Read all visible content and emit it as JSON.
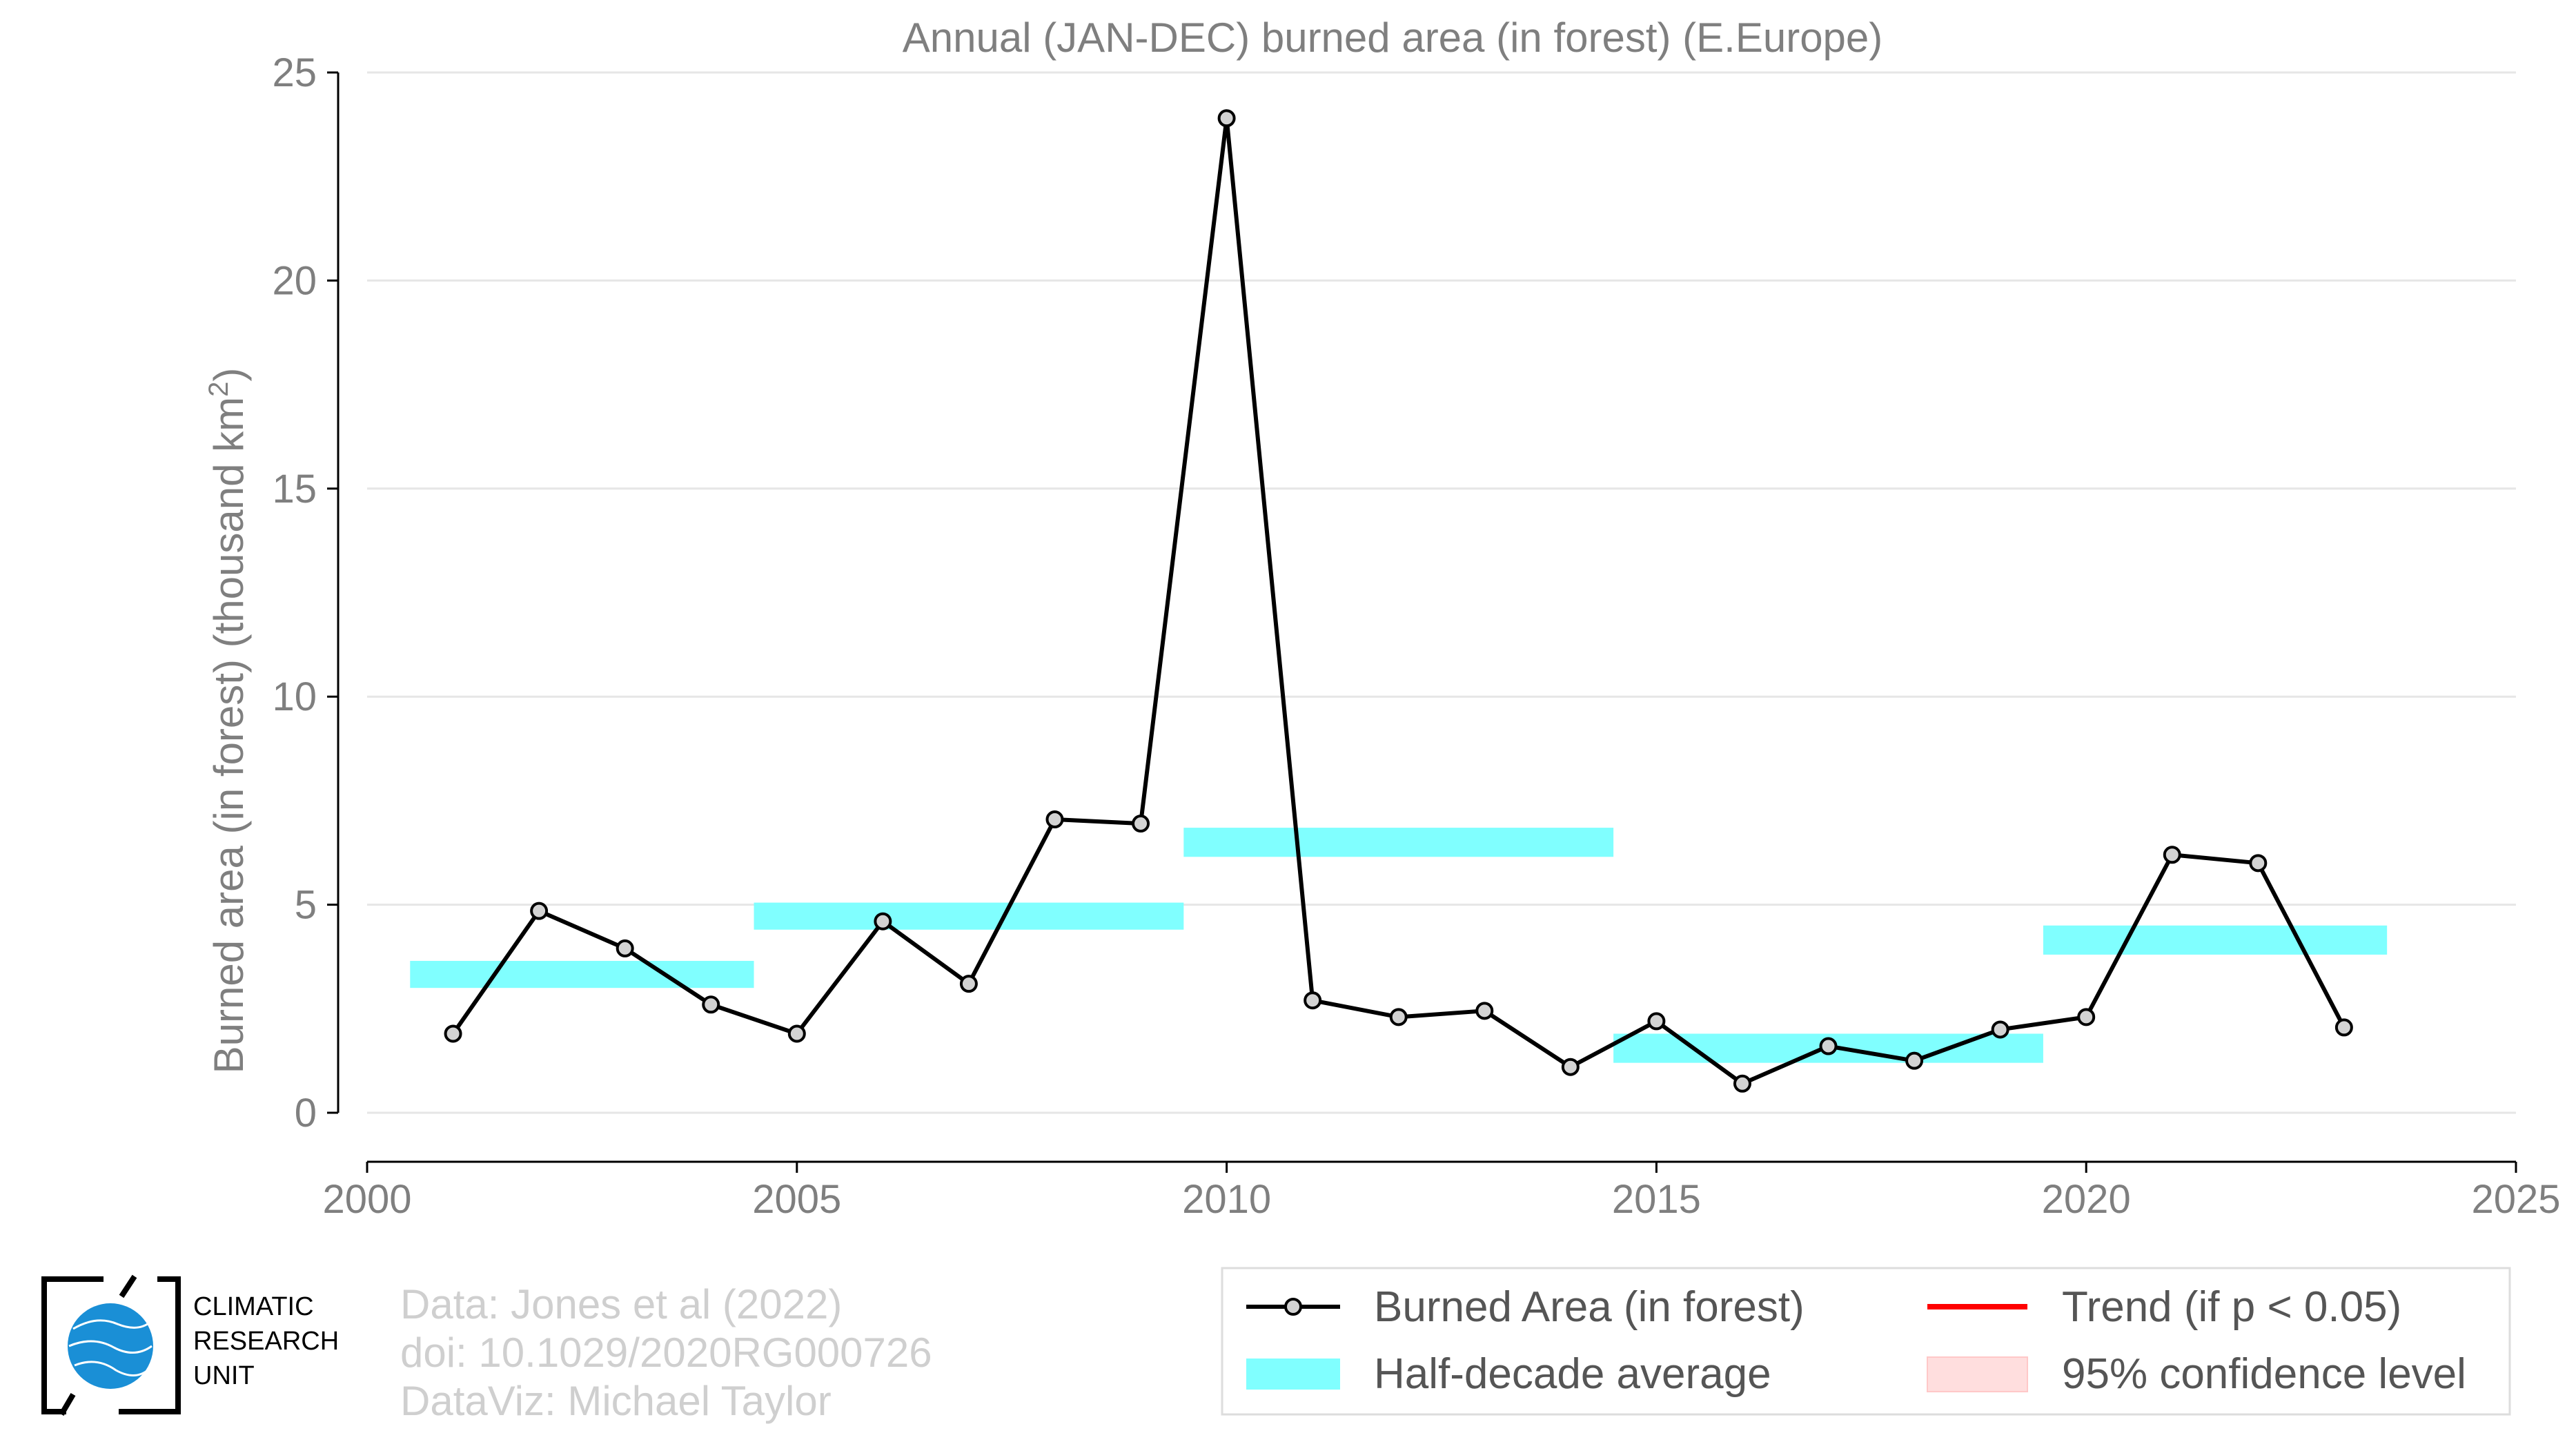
{
  "chart_data": {
    "type": "line",
    "title": "Annual (JAN-DEC) burned area (in forest) (E.Europe)",
    "ylabel": "Burned area (in forest) (thousand km",
    "ylabel_sup": "2",
    "ylabel_close": ")",
    "xlim": [
      2000,
      2025
    ],
    "ylim": [
      0,
      25
    ],
    "x_ticks": [
      2000,
      2005,
      2010,
      2015,
      2020,
      2025
    ],
    "y_ticks": [
      0,
      5,
      10,
      15,
      20,
      25
    ],
    "grid": "horizontal",
    "legend_position": "bottom-right",
    "series": [
      {
        "name": "Burned Area (in forest)",
        "color": "#000000",
        "marker_fill": "#d3d3d3",
        "x": [
          2001,
          2002,
          2003,
          2004,
          2005,
          2006,
          2007,
          2008,
          2009,
          2010,
          2011,
          2012,
          2013,
          2014,
          2015,
          2016,
          2017,
          2018,
          2019,
          2020,
          2021,
          2022,
          2023
        ],
        "y": [
          1.9,
          4.85,
          3.95,
          2.6,
          1.9,
          4.6,
          3.1,
          7.05,
          6.95,
          23.9,
          2.7,
          2.3,
          2.45,
          1.1,
          2.2,
          0.7,
          1.6,
          1.25,
          2.0,
          2.3,
          6.2,
          6.0,
          2.05
        ]
      }
    ],
    "half_decade_average": {
      "name": "Half-decade average",
      "color": "#80ffff",
      "segments": [
        {
          "x_start": 2000.5,
          "x_end": 2004.5,
          "y_low": 3.0,
          "y_high": 3.65
        },
        {
          "x_start": 2004.5,
          "x_end": 2009.5,
          "y_low": 4.4,
          "y_high": 5.05
        },
        {
          "x_start": 2009.5,
          "x_end": 2014.5,
          "y_low": 6.15,
          "y_high": 6.85
        },
        {
          "x_start": 2014.5,
          "x_end": 2019.5,
          "y_low": 1.2,
          "y_high": 1.9
        },
        {
          "x_start": 2019.5,
          "x_end": 2023.5,
          "y_low": 3.8,
          "y_high": 4.5
        }
      ]
    },
    "legend": {
      "entries": [
        {
          "label": "Burned Area (in forest)",
          "kind": "line-marker",
          "color": "#000000"
        },
        {
          "label": "Trend (if p < 0.05)",
          "kind": "line",
          "color": "#ff0000"
        },
        {
          "label": "Half-decade average",
          "kind": "band",
          "color": "#80ffff"
        },
        {
          "label": "95% confidence level",
          "kind": "band",
          "color": "#ffdede"
        }
      ]
    }
  },
  "credits": {
    "line1": "Data: Jones et al (2022)",
    "line2": "doi: 10.1029/2020RG000726",
    "line3": "DataViz: Michael Taylor"
  },
  "logo": {
    "line1": "CLIMATIC",
    "line2": "RESEARCH",
    "line3": "UNIT",
    "globe_color": "#1a8fd6"
  }
}
